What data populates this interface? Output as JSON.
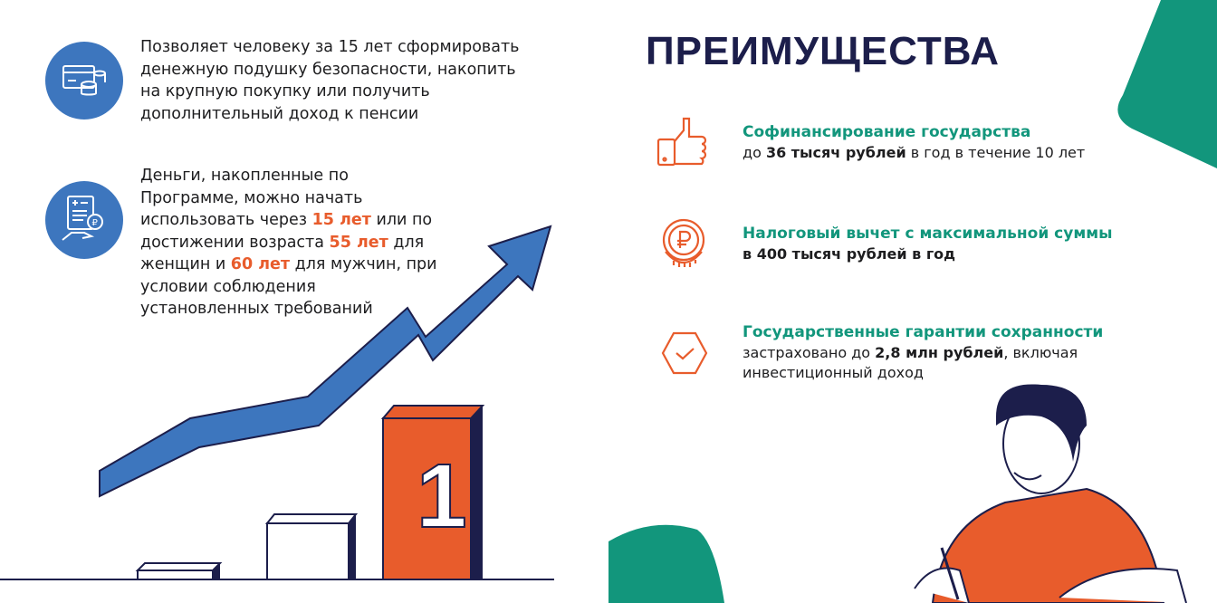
{
  "colors": {
    "blue": "#3d76be",
    "orange": "#e85c2c",
    "teal": "#12967c",
    "navy": "#1c1e4b"
  },
  "left": {
    "item1": {
      "icon": "card-coins-icon",
      "text": "Позволяет человеку за 15 лет сформировать денежную подушку безопасности, накопить на крупную покупку или получить дополнительный доход к пенсии"
    },
    "item2": {
      "icon": "document-hand-ruble-icon",
      "t1": "Деньги, накопленные по Программе, можно начать использовать через ",
      "h1": "15 лет",
      "t2": " или по достижении возраста ",
      "h2": "55 лет",
      "t3": " для женщин и ",
      "h3": "60 лет",
      "t4": " для мужчин, при условии соблюдения установленных требований"
    },
    "bar_label": "1"
  },
  "right": {
    "title": "ПРЕИМУЩЕСТВА",
    "items": [
      {
        "icon": "thumbs-up-phone-icon",
        "title": "Софинансирование государства",
        "pre": "до ",
        "bold": "36 тысяч рублей",
        "post": " в год в течение 10 лет"
      },
      {
        "icon": "ruble-coin-icon",
        "title": "Налоговый вычет с максимальной суммы",
        "pre": "",
        "bold": "в 400 тысяч рублей в год",
        "post": ""
      },
      {
        "icon": "shield-check-icon",
        "title": "Государственные гарантии сохранности",
        "pre": "застраховано до ",
        "bold": "2,8 млн рублей",
        "post": ", включая инвестиционный доход"
      }
    ]
  }
}
